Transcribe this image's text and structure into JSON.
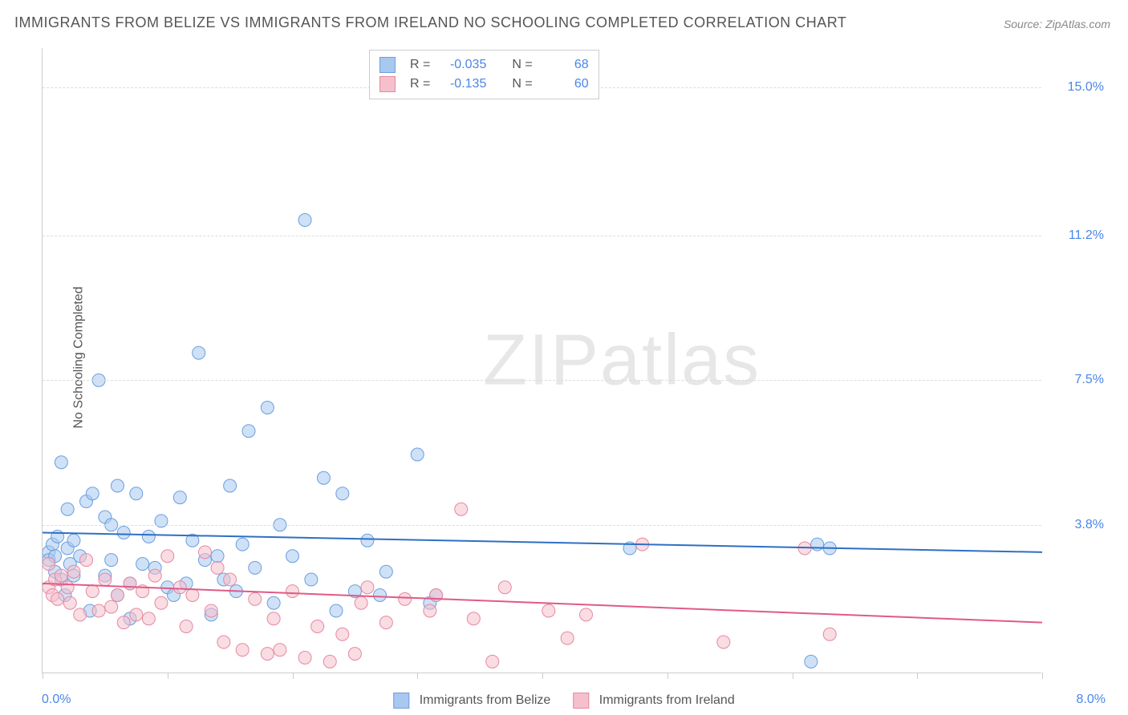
{
  "title": "IMMIGRANTS FROM BELIZE VS IMMIGRANTS FROM IRELAND NO SCHOOLING COMPLETED CORRELATION CHART",
  "source": "Source: ZipAtlas.com",
  "y_axis_label": "No Schooling Completed",
  "watermark_pre": "ZIP",
  "watermark_post": "atlas",
  "chart": {
    "type": "scatter",
    "background_color": "#ffffff",
    "grid_color": "#dddddd",
    "axis_color": "#cccccc",
    "ylim": [
      0,
      16
    ],
    "xlim": [
      0,
      8
    ],
    "ytick_labels": [
      "3.8%",
      "7.5%",
      "11.2%",
      "15.0%"
    ],
    "ytick_values": [
      3.8,
      7.5,
      11.2,
      15.0
    ],
    "ytick_color": "#4a86e8",
    "xtick_positions": [
      0,
      1,
      2,
      3,
      4,
      5,
      6,
      7,
      8
    ],
    "x_min_label": "0.0%",
    "x_max_label": "8.0%",
    "x_label_color": "#4a86e8",
    "marker_radius": 8,
    "marker_opacity": 0.55,
    "line_width": 2,
    "title_fontsize": 18,
    "label_fontsize": 16
  },
  "series": [
    {
      "key": "belize",
      "label": "Immigrants from Belize",
      "color_fill": "#a8c8f0",
      "color_stroke": "#6b9fde",
      "line_color": "#2e6fc4",
      "R_label": "R =",
      "R": "-0.035",
      "N_label": "N =",
      "N": "68",
      "trend": {
        "y_at_xmin": 3.6,
        "y_at_xmax": 3.1
      },
      "points": [
        [
          0.05,
          3.1
        ],
        [
          0.05,
          2.9
        ],
        [
          0.08,
          3.3
        ],
        [
          0.1,
          3.0
        ],
        [
          0.1,
          2.6
        ],
        [
          0.12,
          3.5
        ],
        [
          0.15,
          5.4
        ],
        [
          0.15,
          2.4
        ],
        [
          0.18,
          2.0
        ],
        [
          0.2,
          3.2
        ],
        [
          0.2,
          4.2
        ],
        [
          0.22,
          2.8
        ],
        [
          0.25,
          3.4
        ],
        [
          0.25,
          2.5
        ],
        [
          0.3,
          3.0
        ],
        [
          0.35,
          4.4
        ],
        [
          0.38,
          1.6
        ],
        [
          0.4,
          4.6
        ],
        [
          0.45,
          7.5
        ],
        [
          0.5,
          4.0
        ],
        [
          0.5,
          2.5
        ],
        [
          0.55,
          3.8
        ],
        [
          0.55,
          2.9
        ],
        [
          0.6,
          4.8
        ],
        [
          0.6,
          2.0
        ],
        [
          0.65,
          3.6
        ],
        [
          0.7,
          1.4
        ],
        [
          0.7,
          2.3
        ],
        [
          0.75,
          4.6
        ],
        [
          0.8,
          2.8
        ],
        [
          0.85,
          3.5
        ],
        [
          0.9,
          2.7
        ],
        [
          0.95,
          3.9
        ],
        [
          1.0,
          2.2
        ],
        [
          1.05,
          2.0
        ],
        [
          1.1,
          4.5
        ],
        [
          1.15,
          2.3
        ],
        [
          1.2,
          3.4
        ],
        [
          1.25,
          8.2
        ],
        [
          1.3,
          2.9
        ],
        [
          1.35,
          1.5
        ],
        [
          1.4,
          3.0
        ],
        [
          1.45,
          2.4
        ],
        [
          1.5,
          4.8
        ],
        [
          1.55,
          2.1
        ],
        [
          1.6,
          3.3
        ],
        [
          1.65,
          6.2
        ],
        [
          1.7,
          2.7
        ],
        [
          1.8,
          6.8
        ],
        [
          1.85,
          1.8
        ],
        [
          1.9,
          3.8
        ],
        [
          2.0,
          3.0
        ],
        [
          2.1,
          11.6
        ],
        [
          2.15,
          2.4
        ],
        [
          2.25,
          5.0
        ],
        [
          2.35,
          1.6
        ],
        [
          2.4,
          4.6
        ],
        [
          2.5,
          2.1
        ],
        [
          2.6,
          3.4
        ],
        [
          2.7,
          2.0
        ],
        [
          2.75,
          2.6
        ],
        [
          3.0,
          5.6
        ],
        [
          3.1,
          1.8
        ],
        [
          3.15,
          2.0
        ],
        [
          4.7,
          3.2
        ],
        [
          6.15,
          0.3
        ],
        [
          6.2,
          3.3
        ],
        [
          6.3,
          3.2
        ]
      ]
    },
    {
      "key": "ireland",
      "label": "Immigrants from Ireland",
      "color_fill": "#f5c0cc",
      "color_stroke": "#e48aa0",
      "line_color": "#e05a85",
      "R_label": "R =",
      "R": "-0.135",
      "N_label": "N =",
      "N": "60",
      "trend": {
        "y_at_xmin": 2.3,
        "y_at_xmax": 1.3
      },
      "points": [
        [
          0.05,
          2.8
        ],
        [
          0.05,
          2.2
        ],
        [
          0.08,
          2.0
        ],
        [
          0.1,
          2.4
        ],
        [
          0.12,
          1.9
        ],
        [
          0.15,
          2.5
        ],
        [
          0.2,
          2.2
        ],
        [
          0.22,
          1.8
        ],
        [
          0.25,
          2.6
        ],
        [
          0.3,
          1.5
        ],
        [
          0.35,
          2.9
        ],
        [
          0.4,
          2.1
        ],
        [
          0.45,
          1.6
        ],
        [
          0.5,
          2.4
        ],
        [
          0.55,
          1.7
        ],
        [
          0.6,
          2.0
        ],
        [
          0.65,
          1.3
        ],
        [
          0.7,
          2.3
        ],
        [
          0.75,
          1.5
        ],
        [
          0.8,
          2.1
        ],
        [
          0.85,
          1.4
        ],
        [
          0.9,
          2.5
        ],
        [
          0.95,
          1.8
        ],
        [
          1.0,
          3.0
        ],
        [
          1.1,
          2.2
        ],
        [
          1.15,
          1.2
        ],
        [
          1.2,
          2.0
        ],
        [
          1.3,
          3.1
        ],
        [
          1.35,
          1.6
        ],
        [
          1.4,
          2.7
        ],
        [
          1.45,
          0.8
        ],
        [
          1.5,
          2.4
        ],
        [
          1.6,
          0.6
        ],
        [
          1.7,
          1.9
        ],
        [
          1.8,
          0.5
        ],
        [
          1.85,
          1.4
        ],
        [
          1.9,
          0.6
        ],
        [
          2.0,
          2.1
        ],
        [
          2.1,
          0.4
        ],
        [
          2.2,
          1.2
        ],
        [
          2.3,
          0.3
        ],
        [
          2.4,
          1.0
        ],
        [
          2.5,
          0.5
        ],
        [
          2.55,
          1.8
        ],
        [
          2.6,
          2.2
        ],
        [
          2.75,
          1.3
        ],
        [
          2.9,
          1.9
        ],
        [
          3.1,
          1.6
        ],
        [
          3.15,
          2.0
        ],
        [
          3.35,
          4.2
        ],
        [
          3.45,
          1.4
        ],
        [
          3.6,
          0.3
        ],
        [
          3.7,
          2.2
        ],
        [
          4.05,
          1.6
        ],
        [
          4.2,
          0.9
        ],
        [
          4.35,
          1.5
        ],
        [
          4.8,
          3.3
        ],
        [
          5.45,
          0.8
        ],
        [
          6.1,
          3.2
        ],
        [
          6.3,
          1.0
        ]
      ]
    }
  ]
}
